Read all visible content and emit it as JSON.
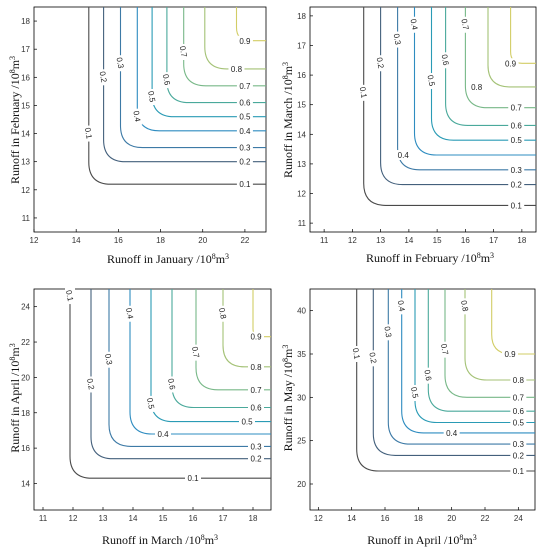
{
  "figure_type": "contour",
  "level_colors": {
    "0.1": "#4a4a4a",
    "0.2": "#44607c",
    "0.3": "#3d7aa6",
    "0.4": "#2e8cc0",
    "0.5": "#2a9bb5",
    "0.6": "#4aa99b",
    "0.7": "#78b888",
    "0.8": "#a4c276",
    "0.9": "#d2cd66"
  },
  "chart_data": [
    {
      "type": "contour",
      "xlabel": "Runoff in January /10^8m^3",
      "ylabel": "Runoff in February /10^8m^3",
      "xlim": [
        12,
        23
      ],
      "ylim": [
        10.5,
        18.5
      ],
      "xticks": [
        12,
        14,
        16,
        18,
        20,
        22
      ],
      "yticks": [
        11,
        12,
        13,
        14,
        15,
        16,
        17,
        18
      ],
      "levels": [
        {
          "level": 0.1,
          "corner": [
            14.6,
            12.2
          ],
          "label_v": 14.0,
          "label_h": 22.0
        },
        {
          "level": 0.2,
          "corner": [
            15.3,
            13.0
          ],
          "label_v": 16.0,
          "label_h": 22.0
        },
        {
          "level": 0.3,
          "corner": [
            16.1,
            13.5
          ],
          "label_v": 16.5,
          "label_h": 22.0
        },
        {
          "level": 0.4,
          "corner": [
            16.9,
            14.1
          ],
          "label_v": 14.6,
          "label_h": 22.0
        },
        {
          "level": 0.5,
          "corner": [
            17.6,
            14.6
          ],
          "label_v": 15.3,
          "label_h": 22.0
        },
        {
          "level": 0.6,
          "corner": [
            18.3,
            15.1
          ],
          "label_v": 15.9,
          "label_h": 22.0
        },
        {
          "level": 0.7,
          "corner": [
            19.1,
            15.7
          ],
          "label_v": 16.9,
          "label_h": 22.0
        },
        {
          "level": 0.8,
          "corner": [
            20.1,
            16.3
          ],
          "label_v": null,
          "label_h": 21.6
        },
        {
          "level": 0.9,
          "corner": [
            21.6,
            17.3
          ],
          "label_v": null,
          "label_h": 22.0
        }
      ]
    },
    {
      "type": "contour",
      "xlabel": "Runoff in February /10^8m^3",
      "ylabel": "Runoff in March /10^8m^3",
      "xlim": [
        10.5,
        18.5
      ],
      "ylim": [
        10.7,
        18.3
      ],
      "xticks": [
        11,
        12,
        13,
        14,
        15,
        16,
        17,
        18
      ],
      "yticks": [
        11,
        12,
        13,
        14,
        15,
        16,
        17,
        18
      ],
      "levels": [
        {
          "level": 0.1,
          "corner": [
            12.4,
            11.6
          ],
          "label_v": 15.4,
          "label_h": 17.8
        },
        {
          "level": 0.2,
          "corner": [
            13.0,
            12.3
          ],
          "label_v": 16.4,
          "label_h": 17.8
        },
        {
          "level": 0.3,
          "corner": [
            13.6,
            12.8
          ],
          "label_v": 17.2,
          "label_h": 17.8
        },
        {
          "level": 0.4,
          "corner": [
            14.2,
            13.3
          ],
          "label_v": 17.7,
          "label_h": 13.8
        },
        {
          "level": 0.5,
          "corner": [
            14.8,
            13.8
          ],
          "label_v": 15.8,
          "label_h": 17.8
        },
        {
          "level": 0.6,
          "corner": [
            15.3,
            14.3
          ],
          "label_v": 16.5,
          "label_h": 17.8
        },
        {
          "level": 0.7,
          "corner": [
            16.0,
            14.9
          ],
          "label_v": 17.7,
          "label_h": 17.8
        },
        {
          "level": 0.8,
          "corner": [
            16.8,
            15.6
          ],
          "label_v": null,
          "label_h": 16.4
        },
        {
          "level": 0.9,
          "corner": [
            17.6,
            16.4
          ],
          "label_v": null,
          "label_h": 17.6
        }
      ]
    },
    {
      "type": "contour",
      "xlabel": "Runoff in March /10^8m^3",
      "ylabel": "Runoff in April /10^8m^3",
      "xlim": [
        10.7,
        18.6
      ],
      "ylim": [
        12.5,
        25.0
      ],
      "xticks": [
        11,
        12,
        13,
        14,
        15,
        16,
        17,
        18
      ],
      "yticks": [
        14,
        16,
        18,
        20,
        22,
        24
      ],
      "levels": [
        {
          "level": 0.1,
          "corner": [
            11.9,
            14.3
          ],
          "label_v": 24.6,
          "label_h": 16.0
        },
        {
          "level": 0.2,
          "corner": [
            12.6,
            15.4
          ],
          "label_v": 19.6,
          "label_h": 18.1
        },
        {
          "level": 0.3,
          "corner": [
            13.2,
            16.1
          ],
          "label_v": 21.0,
          "label_h": 18.1
        },
        {
          "level": 0.4,
          "corner": [
            13.9,
            16.8
          ],
          "label_v": 23.6,
          "label_h": 15.0
        },
        {
          "level": 0.5,
          "corner": [
            14.6,
            17.5
          ],
          "label_v": 18.5,
          "label_h": 17.8
        },
        {
          "level": 0.6,
          "corner": [
            15.3,
            18.3
          ],
          "label_v": 19.6,
          "label_h": 18.1
        },
        {
          "level": 0.7,
          "corner": [
            16.1,
            19.3
          ],
          "label_v": 21.4,
          "label_h": 18.1
        },
        {
          "level": 0.8,
          "corner": [
            17.0,
            20.6
          ],
          "label_v": 23.6,
          "label_h": 18.1
        },
        {
          "level": 0.9,
          "corner": [
            18.0,
            22.3
          ],
          "label_v": null,
          "label_h": 18.1
        }
      ]
    },
    {
      "type": "contour",
      "xlabel": "Runoff in April /10^8m^3",
      "ylabel": "Runoff in May /10^8m^3",
      "xlim": [
        11.5,
        25.0
      ],
      "ylim": [
        17.0,
        42.5
      ],
      "xticks": [
        12,
        14,
        16,
        18,
        20,
        22,
        24
      ],
      "yticks": [
        20,
        25,
        30,
        35,
        40
      ],
      "levels": [
        {
          "level": 0.1,
          "corner": [
            14.3,
            21.5
          ],
          "label_v": 35.0,
          "label_h": 24.0
        },
        {
          "level": 0.2,
          "corner": [
            15.3,
            23.3
          ],
          "label_v": 34.5,
          "label_h": 24.0
        },
        {
          "level": 0.3,
          "corner": [
            16.2,
            24.6
          ],
          "label_v": 37.5,
          "label_h": 24.0
        },
        {
          "level": 0.4,
          "corner": [
            17.0,
            25.9
          ],
          "label_v": 40.5,
          "label_h": 20.0
        },
        {
          "level": 0.5,
          "corner": [
            17.8,
            27.1
          ],
          "label_v": 30.5,
          "label_h": 24.0
        },
        {
          "level": 0.6,
          "corner": [
            18.6,
            28.4
          ],
          "label_v": 32.5,
          "label_h": 24.0
        },
        {
          "level": 0.7,
          "corner": [
            19.6,
            30.0
          ],
          "label_v": 35.5,
          "label_h": 24.0
        },
        {
          "level": 0.8,
          "corner": [
            20.8,
            32.0
          ],
          "label_v": 40.5,
          "label_h": 24.0
        },
        {
          "level": 0.9,
          "corner": [
            22.4,
            35.0
          ],
          "label_v": null,
          "label_h": 23.5
        }
      ]
    }
  ]
}
